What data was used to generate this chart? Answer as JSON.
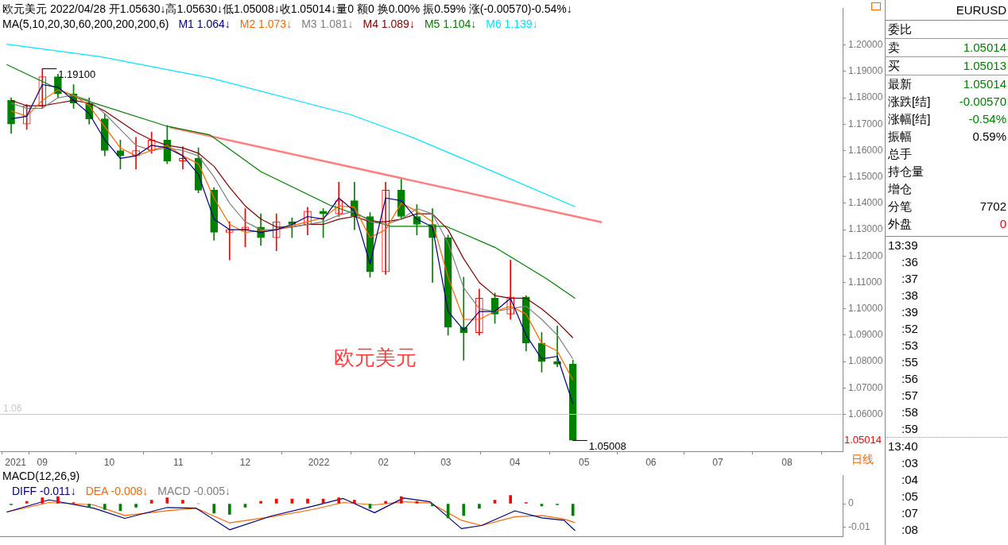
{
  "chart_data": [
    {
      "type": "candlestick",
      "title": "欧元美元 2022/04/28 开1.05630↓高1.05630↓低1.05008↓收1.05014↓量0 额0 换0.00% 振0.59% 涨(-0.00570)-0.54%↓",
      "subtitle": "MA(5,10,20,30,60,200,200,200,6)",
      "x": [
        "2021-08-18",
        "2021-08-25",
        "2021-09-01",
        "2021-09-08",
        "2021-09-15",
        "2021-09-22",
        "2021-09-29",
        "2021-10-06",
        "2021-10-13",
        "2021-10-20",
        "2021-10-27",
        "2021-11-03",
        "2021-11-10",
        "2021-11-17",
        "2021-11-24",
        "2021-12-01",
        "2021-12-08",
        "2021-12-15",
        "2021-12-22",
        "2021-12-29",
        "2022-01-05",
        "2022-01-12",
        "2022-01-19",
        "2022-01-26",
        "2022-02-02",
        "2022-02-09",
        "2022-02-16",
        "2022-02-23",
        "2022-03-02",
        "2022-03-09",
        "2022-03-16",
        "2022-03-23",
        "2022-03-30",
        "2022-04-06",
        "2022-04-13",
        "2022-04-20",
        "2022-04-27"
      ],
      "ohlc": [
        [
          1.179,
          1.18,
          1.1665,
          1.17
        ],
        [
          1.17,
          1.1775,
          1.168,
          1.177
        ],
        [
          1.177,
          1.191,
          1.176,
          1.188
        ],
        [
          1.188,
          1.189,
          1.18,
          1.1815
        ],
        [
          1.1815,
          1.185,
          1.176,
          1.178
        ],
        [
          1.178,
          1.18,
          1.17,
          1.172
        ],
        [
          1.172,
          1.174,
          1.158,
          1.16
        ],
        [
          1.16,
          1.164,
          1.153,
          1.158
        ],
        [
          1.158,
          1.165,
          1.153,
          1.16
        ],
        [
          1.16,
          1.167,
          1.159,
          1.164
        ],
        [
          1.164,
          1.1695,
          1.155,
          1.156
        ],
        [
          1.156,
          1.1615,
          1.153,
          1.157
        ],
        [
          1.157,
          1.161,
          1.144,
          1.145
        ],
        [
          1.145,
          1.146,
          1.126,
          1.129
        ],
        [
          1.129,
          1.133,
          1.1185,
          1.13
        ],
        [
          1.13,
          1.138,
          1.1235,
          1.131
        ],
        [
          1.131,
          1.136,
          1.124,
          1.127
        ],
        [
          1.127,
          1.136,
          1.122,
          1.133
        ],
        [
          1.133,
          1.1345,
          1.127,
          1.132
        ],
        [
          1.132,
          1.1385,
          1.128,
          1.137
        ],
        [
          1.137,
          1.138,
          1.127,
          1.136
        ],
        [
          1.136,
          1.148,
          1.135,
          1.141
        ],
        [
          1.141,
          1.148,
          1.13,
          1.135
        ],
        [
          1.135,
          1.1365,
          1.112,
          1.114
        ],
        [
          1.114,
          1.148,
          1.113,
          1.145
        ],
        [
          1.145,
          1.1495,
          1.134,
          1.135
        ],
        [
          1.135,
          1.1395,
          1.128,
          1.132
        ],
        [
          1.132,
          1.138,
          1.11,
          1.127
        ],
        [
          1.127,
          1.128,
          1.09,
          1.093
        ],
        [
          1.093,
          1.112,
          1.0805,
          1.091
        ],
        [
          1.091,
          1.1075,
          1.09,
          1.104
        ],
        [
          1.104,
          1.106,
          1.0945,
          1.098
        ],
        [
          1.098,
          1.1185,
          1.096,
          1.1045
        ],
        [
          1.1045,
          1.105,
          1.084,
          1.087
        ],
        [
          1.087,
          1.091,
          1.076,
          1.08
        ],
        [
          1.08,
          1.0935,
          1.078,
          1.079
        ],
        [
          1.079,
          1.0805,
          1.05008,
          1.05014
        ]
      ],
      "colors": [
        "#008000",
        "#ff0000",
        "#ff0000",
        "#008000",
        "#008000",
        "#008000",
        "#008000",
        "#008000",
        "#ff0000",
        "#ff0000",
        "#008000",
        "#ff0000",
        "#008000",
        "#008000",
        "#ff0000",
        "#ff0000",
        "#008000",
        "#ff0000",
        "#008000",
        "#ff0000",
        "#008000",
        "#ff0000",
        "#008000",
        "#008000",
        "#ff0000",
        "#008000",
        "#008000",
        "#008000",
        "#008000",
        "#008000",
        "#ff0000",
        "#008000",
        "#ff0000",
        "#008000",
        "#008000",
        "#008000",
        "#008000"
      ],
      "series": [
        {
          "type": "line",
          "name": "M1 1.064↓",
          "color": "#000080",
          "values": [
            1.172,
            1.173,
            1.185,
            1.184,
            1.179,
            1.174,
            1.164,
            1.157,
            1.158,
            1.162,
            1.161,
            1.158,
            1.151,
            1.134,
            1.13,
            1.13,
            1.129,
            1.13,
            1.132,
            1.135,
            1.134,
            1.142,
            1.137,
            1.117,
            1.142,
            1.141,
            1.134,
            1.131,
            1.099,
            1.092,
            1.099,
            1.099,
            1.104,
            1.09,
            1.081,
            1.082,
            1.064
          ]
        },
        {
          "type": "line",
          "name": "M2 1.073↓",
          "color": "#ff6600",
          "values": [
            1.175,
            1.173,
            1.179,
            1.183,
            1.181,
            1.177,
            1.169,
            1.161,
            1.158,
            1.16,
            1.162,
            1.158,
            1.155,
            1.142,
            1.132,
            1.129,
            1.1295,
            1.13,
            1.1315,
            1.133,
            1.1345,
            1.139,
            1.1385,
            1.127,
            1.13,
            1.14,
            1.137,
            1.133,
            1.112,
            1.096,
            1.096,
            1.099,
            1.101,
            1.098,
            1.087,
            1.084,
            1.073
          ]
        },
        {
          "type": "line",
          "name": "M3 1.081↓",
          "color": "#808080",
          "values": [
            1.178,
            1.176,
            1.176,
            1.18,
            1.181,
            1.179,
            1.174,
            1.168,
            1.162,
            1.16,
            1.161,
            1.16,
            1.158,
            1.15,
            1.14,
            1.133,
            1.13,
            1.13,
            1.131,
            1.132,
            1.133,
            1.1355,
            1.137,
            1.133,
            1.132,
            1.134,
            1.138,
            1.136,
            1.125,
            1.108,
            1.1,
            1.099,
            1.1,
            1.101,
            1.096,
            1.09,
            1.081
          ]
        },
        {
          "type": "line",
          "name": "M4 1.089↓",
          "color": "#800000",
          "values": [
            1.179,
            1.177,
            1.177,
            1.178,
            1.179,
            1.178,
            1.175,
            1.171,
            1.167,
            1.164,
            1.162,
            1.161,
            1.159,
            1.154,
            1.146,
            1.139,
            1.134,
            1.131,
            1.131,
            1.132,
            1.132,
            1.134,
            1.135,
            1.133,
            1.133,
            1.134,
            1.136,
            1.136,
            1.13,
            1.119,
            1.11,
            1.105,
            1.104,
            1.104,
            1.1,
            1.095,
            1.089
          ]
        },
        {
          "type": "line",
          "name": "M5 1.104↓",
          "color": "#008000",
          "x": [
            "2021-08-16",
            "2021-09-16",
            "2021-10-27",
            "2021-11-15",
            "2021-12-08",
            "2022-01-08",
            "2022-02-04",
            "2022-03-01",
            "2022-03-23",
            "2022-04-15",
            "2022-04-28"
          ],
          "values": [
            1.1926,
            1.1802,
            1.1692,
            1.166,
            1.152,
            1.1393,
            1.1313,
            1.1313,
            1.1233,
            1.1115,
            1.104
          ]
        },
        {
          "type": "line",
          "name": "M6 1.139↓",
          "color": "#00e5ff",
          "x": [
            "2021-08-16",
            "2021-09-27",
            "2021-11-15",
            "2022-01-17",
            "2022-02-14",
            "2022-03-14",
            "2022-04-28"
          ],
          "values": [
            1.2003,
            1.1956,
            1.1876,
            1.1737,
            1.165,
            1.155,
            1.1387
          ]
        },
        {
          "type": "line",
          "color": "#ff8080",
          "x": [
            "2021-10-28",
            "2022-05-10"
          ],
          "values": [
            1.1689,
            1.1328
          ]
        }
      ],
      "xlim": [
        "2021-08-13",
        "2022-08-26"
      ],
      "xticks": [
        {
          "value": "2021-08-20",
          "label": "2021"
        },
        {
          "value": "2021-09-01",
          "label": "09"
        },
        {
          "value": "2021-10-01",
          "label": "10"
        },
        {
          "value": "2021-11-01",
          "label": "11"
        },
        {
          "value": "2021-12-01",
          "label": "12"
        },
        {
          "value": "2022-01-03",
          "label": "2022"
        },
        {
          "value": "2022-02-01",
          "label": "02"
        },
        {
          "value": "2022-03-01",
          "label": "03"
        },
        {
          "value": "2022-04-01",
          "label": "04"
        },
        {
          "value": "2022-05-02",
          "label": "05"
        },
        {
          "value": "2022-06-01",
          "label": "06"
        },
        {
          "value": "2022-07-01",
          "label": "07"
        },
        {
          "value": "2022-08-01",
          "label": "08"
        }
      ],
      "ylim": [
        1.046,
        1.214
      ],
      "yticks": [
        {
          "value": 1.06,
          "label": "1.06000"
        },
        {
          "value": 1.07,
          "label": "1.07000"
        },
        {
          "value": 1.08,
          "label": "1.08000"
        },
        {
          "value": 1.09,
          "label": "1.09000"
        },
        {
          "value": 1.1,
          "label": "1.10000"
        },
        {
          "value": 1.11,
          "label": "1.11000"
        },
        {
          "value": 1.12,
          "label": "1.12000"
        },
        {
          "value": 1.13,
          "label": "1.13000"
        },
        {
          "value": 1.14,
          "label": "1.14000"
        },
        {
          "value": 1.15,
          "label": "1.15000"
        },
        {
          "value": 1.16,
          "label": "1.16000"
        },
        {
          "value": 1.17,
          "label": "1.17000"
        },
        {
          "value": 1.18,
          "label": "1.18000"
        },
        {
          "value": 1.19,
          "label": "1.19000"
        },
        {
          "value": 1.2,
          "label": "1.20000"
        }
      ],
      "ref_lines": [
        {
          "axis": "y",
          "value": 1.06,
          "label": "1.06",
          "color": "#c8c8c8"
        }
      ],
      "annotations": [
        "欧元美元",
        "日线",
        {
          "text": "1.19100",
          "x": "2021-09-01",
          "y": 1.191
        },
        {
          "text": "1.05008",
          "x": "2022-04-27",
          "y": 1.05008
        },
        "1.05014"
      ],
      "legend": "top left",
      "marker": "none"
    },
    {
      "type": "line",
      "title": "MACD(12,26,9)",
      "x": [
        "2021-08-18",
        "2021-08-25",
        "2021-09-01",
        "2021-09-08",
        "2021-09-15",
        "2021-09-22",
        "2021-09-29",
        "2021-10-06",
        "2021-10-13",
        "2021-10-20",
        "2021-10-27",
        "2021-11-03",
        "2021-11-10",
        "2021-11-17",
        "2021-11-24",
        "2021-12-01",
        "2021-12-08",
        "2021-12-15",
        "2021-12-22",
        "2021-12-29",
        "2022-01-05",
        "2022-01-12",
        "2022-01-19",
        "2022-01-26",
        "2022-02-02",
        "2022-02-09",
        "2022-02-16",
        "2022-02-23",
        "2022-03-02",
        "2022-03-09",
        "2022-03-16",
        "2022-03-23",
        "2022-03-30",
        "2022-04-06",
        "2022-04-13",
        "2022-04-20",
        "2022-04-27"
      ],
      "series": [
        {
          "type": "line",
          "name": "DIFF -0.011↓",
          "color": "#000080",
          "x": [
            "2021-08-16",
            "2021-09-04",
            "2021-09-24",
            "2021-10-08",
            "2021-10-27",
            "2021-11-09",
            "2021-11-24",
            "2021-12-13",
            "2021-12-31",
            "2022-01-14",
            "2022-01-28",
            "2022-02-10",
            "2022-02-22",
            "2022-03-08",
            "2022-03-17",
            "2022-04-01",
            "2022-04-13",
            "2022-04-23",
            "2022-04-28"
          ],
          "values": [
            -0.0035,
            0.0016,
            -0.0019,
            -0.0062,
            -0.0016,
            -0.0019,
            -0.011,
            -0.0051,
            -0.0011,
            0.0022,
            -0.0038,
            0.0024,
            0.0008,
            -0.0105,
            -0.0092,
            -0.003,
            -0.006,
            -0.007,
            -0.0114
          ]
        },
        {
          "type": "line",
          "name": "DEA -0.008↓",
          "color": "#ff6600",
          "x": [
            "2021-08-16",
            "2021-09-04",
            "2021-09-24",
            "2021-10-08",
            "2021-10-27",
            "2021-11-09",
            "2021-11-24",
            "2021-12-13",
            "2021-12-31",
            "2022-01-14",
            "2022-01-28",
            "2022-02-10",
            "2022-02-22",
            "2022-03-08",
            "2022-03-17",
            "2022-04-01",
            "2022-04-13",
            "2022-04-23",
            "2022-04-28"
          ],
          "values": [
            -0.0035,
            0.0005,
            -0.0005,
            -0.005,
            -0.003,
            -0.0019,
            -0.0081,
            -0.0055,
            -0.0025,
            0.0005,
            -0.0005,
            0.0008,
            0.0003,
            -0.007,
            -0.0092,
            -0.0055,
            -0.005,
            -0.0065,
            -0.008
          ]
        },
        {
          "type": "bar",
          "name": "MACD -0.005↓",
          "color": "#808080",
          "values": [
            -0.0005,
            0.001,
            0.0025,
            0.003,
            0.0005,
            -0.0015,
            -0.0025,
            -0.003,
            -0.0015,
            0.0015,
            0.0025,
            0.0015,
            0.0,
            -0.004,
            -0.0045,
            -0.0015,
            0.001,
            0.002,
            0.002,
            0.002,
            0.002,
            0.0025,
            0.0015,
            -0.002,
            0.001,
            0.003,
            0.001,
            -0.001,
            -0.006,
            -0.005,
            -0.002,
            0.0015,
            0.0035,
            0.0005,
            -0.001,
            -0.0005,
            -0.005
          ],
          "colors": [
            "#008000",
            "#ff0000",
            "#ff0000",
            "#ff0000",
            "#ff0000",
            "#008000",
            "#008000",
            "#008000",
            "#008000",
            "#ff0000",
            "#ff0000",
            "#ff0000",
            "#ff0000",
            "#008000",
            "#008000",
            "#008000",
            "#ff0000",
            "#ff0000",
            "#ff0000",
            "#ff0000",
            "#ff0000",
            "#ff0000",
            "#ff0000",
            "#008000",
            "#ff0000",
            "#ff0000",
            "#ff0000",
            "#008000",
            "#008000",
            "#008000",
            "#008000",
            "#ff0000",
            "#ff0000",
            "#ff0000",
            "#008000",
            "#008000",
            "#008000"
          ]
        }
      ],
      "xlim": [
        "2021-08-13",
        "2022-08-26"
      ],
      "ylim": [
        -0.014,
        0.012
      ],
      "yticks": [
        0,
        -0.01
      ],
      "tick_labels": "y",
      "legend": "top left",
      "marker": "none"
    },
    {
      "type": "other",
      "title": "EURUSD",
      "categories": [
        "委比",
        "卖",
        "买",
        "最新",
        "涨跌[结]",
        "涨幅[结]",
        "振幅",
        "总手",
        "持仓量",
        "增仓",
        "分笔",
        "外盘"
      ],
      "value_labels": [
        null,
        "1.05014",
        "1.05013",
        "1.05014",
        "-0.00570",
        "-0.54%",
        "0.59%",
        null,
        null,
        null,
        "7702",
        "0"
      ],
      "colors": [
        null,
        "#008000",
        "#008000",
        "#008000",
        "#008000",
        "#008000",
        "#000000",
        null,
        null,
        null,
        "#000000",
        "#ff0000"
      ],
      "annotations": [
        "13:39",
        ":36",
        ":37",
        ":38",
        ":39",
        ":52",
        ":53",
        ":55",
        ":56",
        ":57",
        ":58",
        ":59",
        "13:40",
        ":03",
        ":04",
        ":05",
        ":07",
        ":08"
      ]
    }
  ]
}
